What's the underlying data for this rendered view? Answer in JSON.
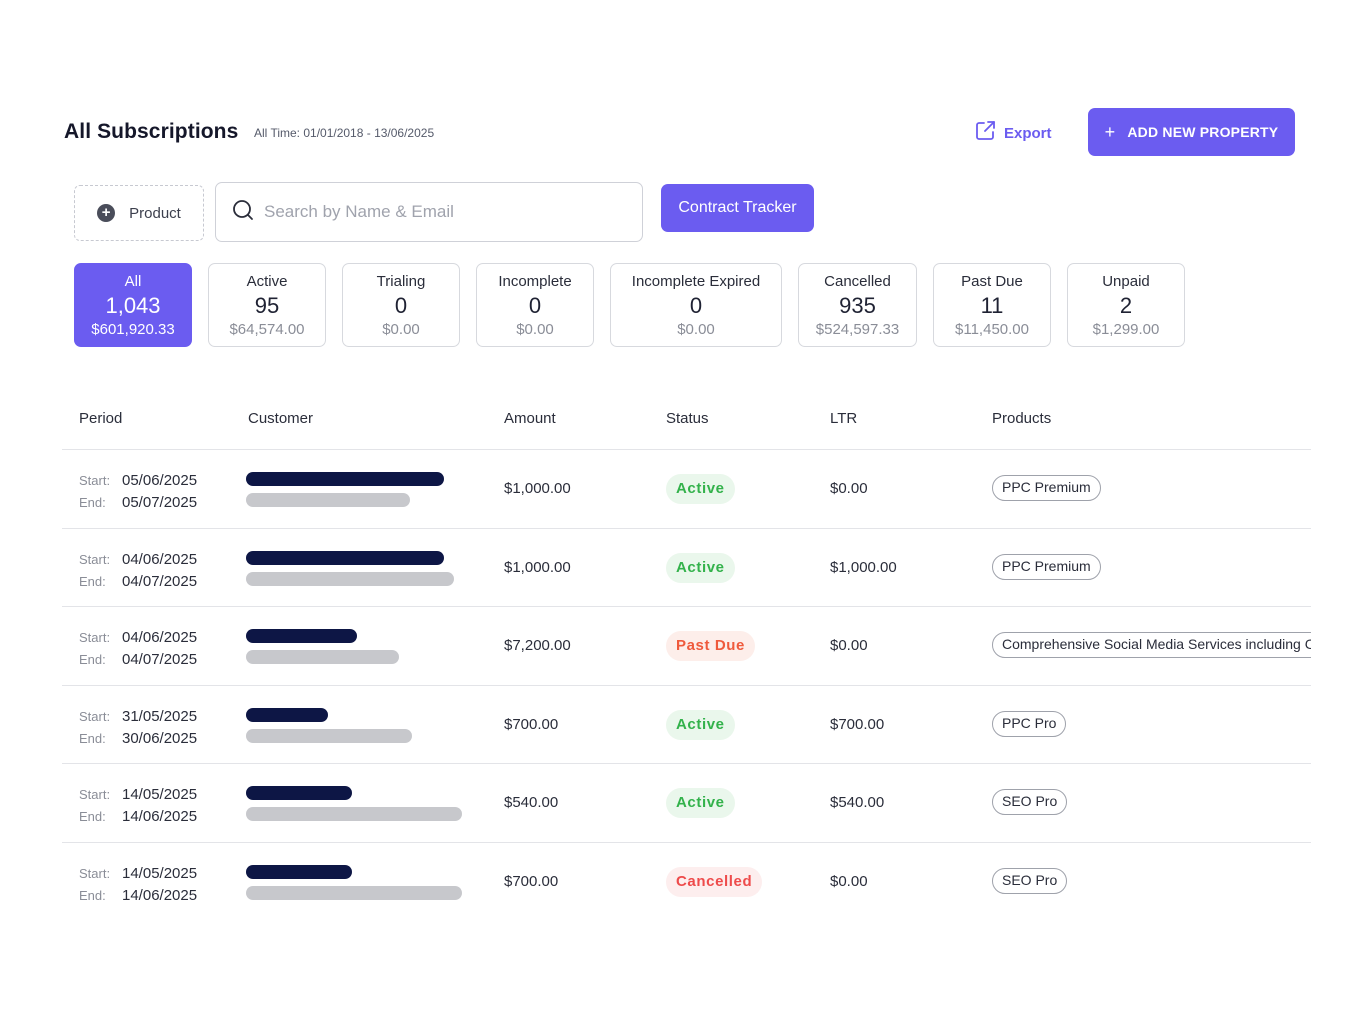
{
  "header": {
    "title": "All Subscriptions",
    "date_range": "All Time: 01/01/2018 - 13/06/2025",
    "export_label": "Export",
    "add_label": "ADD NEW PROPERTY"
  },
  "filters": {
    "product_label": "Product",
    "search_placeholder": "Search by Name & Email",
    "tracker_label": "Contract Tracker"
  },
  "tabs": [
    {
      "label": "All",
      "count": "1,043",
      "amount": "$601,920.33"
    },
    {
      "label": "Active",
      "count": "95",
      "amount": "$64,574.00"
    },
    {
      "label": "Trialing",
      "count": "0",
      "amount": "$0.00"
    },
    {
      "label": "Incomplete",
      "count": "0",
      "amount": "$0.00"
    },
    {
      "label": "Incomplete Expired",
      "count": "0",
      "amount": "$0.00"
    },
    {
      "label": "Cancelled",
      "count": "935",
      "amount": "$524,597.33"
    },
    {
      "label": "Past Due",
      "count": "11",
      "amount": "$11,450.00"
    },
    {
      "label": "Unpaid",
      "count": "2",
      "amount": "$1,299.00"
    }
  ],
  "table": {
    "columns": {
      "period": "Period",
      "customer": "Customer",
      "amount": "Amount",
      "status": "Status",
      "ltr": "LTR",
      "products": "Products"
    },
    "start_label": "Start:",
    "end_label": "End:",
    "rows": [
      {
        "start": "05/06/2025",
        "end": "05/07/2025",
        "amount": "$1,000.00",
        "status": "Active",
        "ltr": "$0.00",
        "product": "PPC Premium"
      },
      {
        "start": "04/06/2025",
        "end": "04/07/2025",
        "amount": "$1,000.00",
        "status": "Active",
        "ltr": "$1,000.00",
        "product": "PPC Premium"
      },
      {
        "start": "04/06/2025",
        "end": "04/07/2025",
        "amount": "$7,200.00",
        "status": "Past Due",
        "ltr": "$0.00",
        "product": "Comprehensive Social Media Services including Content"
      },
      {
        "start": "31/05/2025",
        "end": "30/06/2025",
        "amount": "$700.00",
        "status": "Active",
        "ltr": "$700.00",
        "product": "PPC Pro"
      },
      {
        "start": "14/05/2025",
        "end": "14/06/2025",
        "amount": "$540.00",
        "status": "Active",
        "ltr": "$540.00",
        "product": "SEO Pro"
      },
      {
        "start": "14/05/2025",
        "end": "14/06/2025",
        "amount": "$700.00",
        "status": "Cancelled",
        "ltr": "$0.00",
        "product": "SEO Pro"
      }
    ]
  },
  "colors": {
    "accent": "#6b5cf0",
    "status_active": "#33b24b",
    "status_past_due": "#ef5a3c",
    "status_cancelled": "#ee4b4b",
    "redacted_name": "#0d1645",
    "redacted_email": "#c7c8cc"
  }
}
